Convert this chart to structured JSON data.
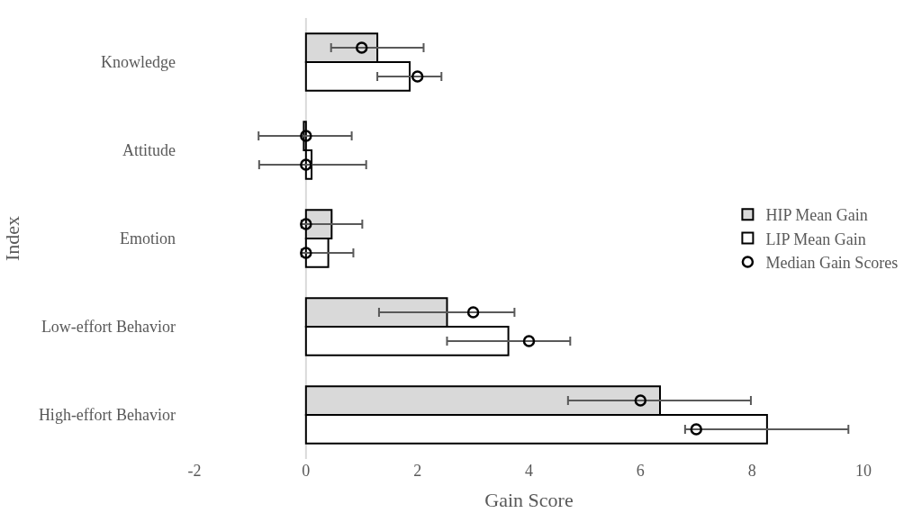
{
  "chart_data": {
    "type": "bar",
    "orientation": "horizontal",
    "xlabel": "Gain Score",
    "ylabel": "Index",
    "categories": [
      "Knowledge",
      "Attitude",
      "Emotion",
      "Low-effort Behavior",
      "High-effort Behavior"
    ],
    "series": [
      {
        "name": "HIP Mean Gain",
        "color": "#d9d9d9",
        "values": [
          1.28,
          -0.04,
          0.46,
          2.53,
          6.35
        ]
      },
      {
        "name": "LIP Mean Gain",
        "color": "#ffffff",
        "values": [
          1.86,
          0.1,
          0.4,
          3.63,
          8.27
        ]
      },
      {
        "name": "Median Gain Scores",
        "type": "scatter",
        "marker": "circle",
        "color": "#000000",
        "values": [
          2,
          0,
          0,
          4,
          7
        ],
        "errors": [
          [
            1.28,
            2.43
          ],
          [
            -0.84,
            1.08
          ],
          [
            -0.08,
            0.85
          ],
          [
            2.53,
            4.74
          ],
          [
            6.8,
            9.73
          ]
        ]
      },
      {
        "type": "scatter",
        "marker": "circle",
        "color": "#000000",
        "values": [
          1,
          0,
          0,
          3,
          6
        ],
        "errors": [
          [
            0.45,
            2.11
          ],
          [
            -0.85,
            0.82
          ],
          [
            -0.08,
            1.01
          ],
          [
            1.31,
            3.74
          ],
          [
            4.7,
            7.98
          ]
        ]
      }
    ],
    "ref_lines": [
      {
        "axis": "x",
        "value": 0,
        "color": "#d9d9d9"
      }
    ],
    "xlim": [
      -2,
      10
    ],
    "xticks": [
      -2,
      0,
      2,
      4,
      6,
      8,
      10
    ],
    "legend": "right"
  }
}
